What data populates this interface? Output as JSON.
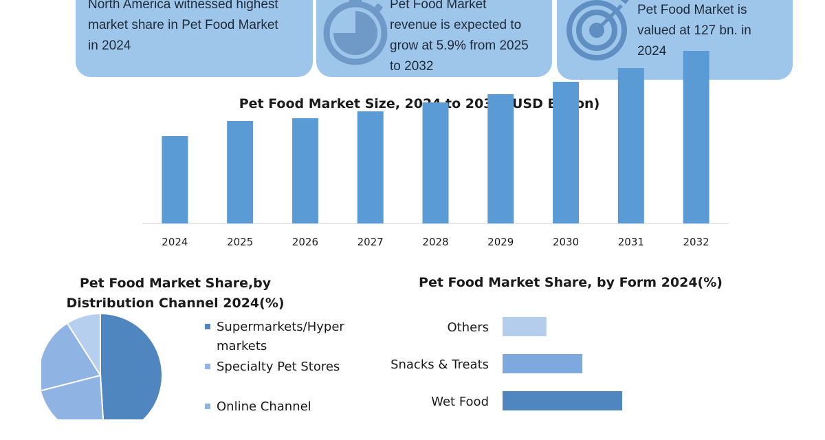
{
  "info_cards": [
    {
      "text": "North America witnessed highest\nmarket share in Pet Food Market\nin 2024",
      "icon": "none"
    },
    {
      "text": "Pet Food Market\nrevenue is expected to\ngrow at 5.9% from 2025\nto 2032",
      "icon": "stopwatch-icon"
    },
    {
      "text": "Pet Food Market is\nvalued at 127 bn. in\n2024",
      "icon": "target-icon"
    }
  ],
  "colors": {
    "card_bg": "#9ec5ea",
    "bar": "#5b9bd5",
    "pie_dark": "#4f86bf",
    "pie_medium": "#8fb4e3",
    "pie_light": "#b7cfee",
    "hbar_light": "#b4cdec",
    "hbar_medium": "#7ea9df",
    "hbar_dark": "#4f86bf"
  },
  "chart_data": [
    {
      "type": "bar",
      "title": "Pet Food Market Size, 2024 to 2032 (USD Billion)",
      "categories": [
        "2024",
        "2025",
        "2026",
        "2027",
        "2028",
        "2029",
        "2030",
        "2031",
        "2032"
      ],
      "values": [
        127,
        149,
        153,
        163,
        176,
        188,
        206,
        226,
        251
      ],
      "ylim": [
        0,
        255
      ],
      "grid": false
    },
    {
      "type": "pie",
      "title": "Pet Food Market Share,by\nDistribution Channel 2024(%)",
      "slices": [
        {
          "label": "Supermarkets/Hyper\nmarkets",
          "value": 49,
          "color": "#4f86bf"
        },
        {
          "label": "Specialty Pet Stores",
          "value": 22,
          "color": "#8fb4e3"
        },
        {
          "label": "Online Channel",
          "value": 20,
          "color": "#8fb4e3"
        },
        {
          "label": "",
          "value": 9,
          "color": "#b7cfee"
        }
      ],
      "legend_position": "right"
    },
    {
      "type": "bar",
      "orientation": "horizontal",
      "title": "Pet Food Market Share, by Form 2024(%)",
      "categories": [
        "Others",
        "Snacks & Treats",
        "Wet Food"
      ],
      "values": [
        11,
        20,
        30
      ],
      "colors": [
        "#b4cdec",
        "#7ea9df",
        "#4f86bf"
      ]
    }
  ]
}
